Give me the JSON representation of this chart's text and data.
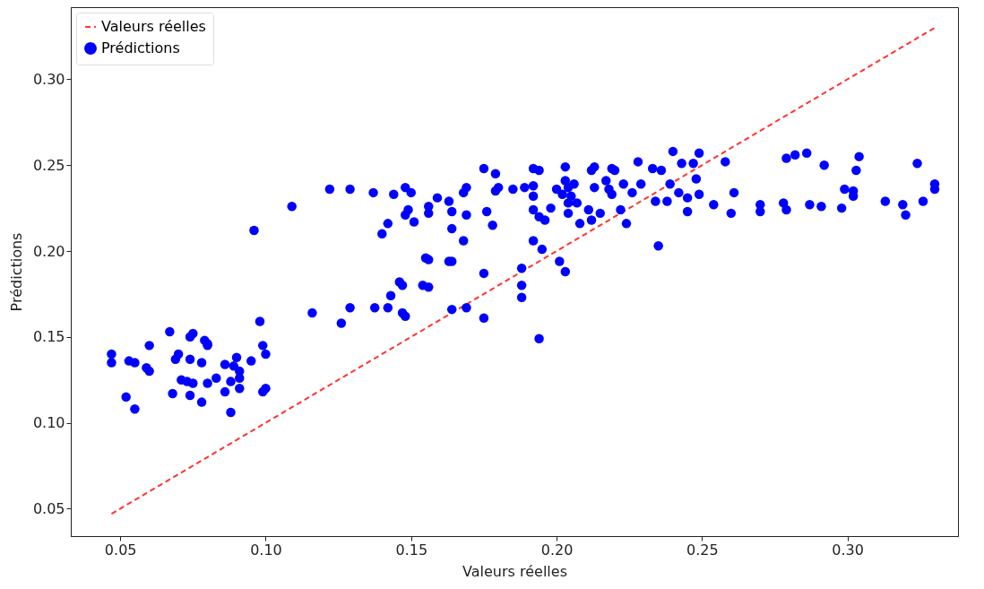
{
  "chart_data": {
    "type": "scatter",
    "xlabel": "Valeurs réelles",
    "ylabel": "Prédictions",
    "xlim": [
      0.033,
      0.338
    ],
    "ylim": [
      0.034,
      0.342
    ],
    "xticks": [
      {
        "value": 0.05,
        "label": "0.05"
      },
      {
        "value": 0.1,
        "label": "0.10"
      },
      {
        "value": 0.15,
        "label": "0.15"
      },
      {
        "value": 0.2,
        "label": "0.20"
      },
      {
        "value": 0.25,
        "label": "0.25"
      },
      {
        "value": 0.3,
        "label": "0.30"
      }
    ],
    "yticks": [
      {
        "value": 0.05,
        "label": "0.05"
      },
      {
        "value": 0.1,
        "label": "0.10"
      },
      {
        "value": 0.15,
        "label": "0.15"
      },
      {
        "value": 0.2,
        "label": "0.20"
      },
      {
        "value": 0.25,
        "label": "0.25"
      },
      {
        "value": 0.3,
        "label": "0.30"
      }
    ],
    "legend": "top left",
    "grid": false,
    "series": [
      {
        "name": "Valeurs réelles",
        "type": "line",
        "color": "#ff3333",
        "line_style": "dashed",
        "x": [
          0.047,
          0.33
        ],
        "values": [
          0.047,
          0.33
        ]
      },
      {
        "name": "Prédictions",
        "type": "scatter",
        "color": "#0000ff",
        "marker": "circle",
        "x": [
          0.047,
          0.047,
          0.053,
          0.055,
          0.052,
          0.055,
          0.059,
          0.06,
          0.06,
          0.067,
          0.069,
          0.07,
          0.068,
          0.071,
          0.073,
          0.074,
          0.075,
          0.074,
          0.074,
          0.075,
          0.078,
          0.078,
          0.079,
          0.08,
          0.08,
          0.08,
          0.083,
          0.086,
          0.086,
          0.088,
          0.088,
          0.089,
          0.09,
          0.091,
          0.091,
          0.091,
          0.095,
          0.096,
          0.098,
          0.099,
          0.1,
          0.099,
          0.1,
          0.109,
          0.116,
          0.122,
          0.126,
          0.129,
          0.129,
          0.137,
          0.1375,
          0.142,
          0.143,
          0.147,
          0.148,
          0.14,
          0.142,
          0.144,
          0.148,
          0.15,
          0.149,
          0.148,
          0.151,
          0.156,
          0.156,
          0.156,
          0.156,
          0.159,
          0.163,
          0.164,
          0.164,
          0.168,
          0.169,
          0.168,
          0.169,
          0.155,
          0.163,
          0.164,
          0.154,
          0.146,
          0.147,
          0.164,
          0.169,
          0.175,
          0.175,
          0.175,
          0.176,
          0.178,
          0.179,
          0.18,
          0.179,
          0.185,
          0.188,
          0.188,
          0.188,
          0.189,
          0.192,
          0.194,
          0.192,
          0.192,
          0.192,
          0.194,
          0.196,
          0.198,
          0.192,
          0.195,
          0.194,
          0.201,
          0.203,
          0.2,
          0.203,
          0.203,
          0.202,
          0.204,
          0.204,
          0.206,
          0.205,
          0.207,
          0.204,
          0.208,
          0.211,
          0.212,
          0.215,
          0.213,
          0.212,
          0.213,
          0.217,
          0.219,
          0.22,
          0.218,
          0.219,
          0.222,
          0.224,
          0.223,
          0.226,
          0.228,
          0.229,
          0.233,
          0.236,
          0.234,
          0.235,
          0.238,
          0.239,
          0.24,
          0.243,
          0.242,
          0.245,
          0.245,
          0.247,
          0.248,
          0.249,
          0.249,
          0.254,
          0.258,
          0.261,
          0.26,
          0.27,
          0.27,
          0.278,
          0.279,
          0.279,
          0.282,
          0.286,
          0.287,
          0.291,
          0.292,
          0.298,
          0.299,
          0.302,
          0.302,
          0.303,
          0.304,
          0.313,
          0.319,
          0.32,
          0.324,
          0.326,
          0.33,
          0.33
        ],
        "values": [
          0.14,
          0.135,
          0.136,
          0.135,
          0.115,
          0.108,
          0.132,
          0.145,
          0.13,
          0.153,
          0.137,
          0.14,
          0.117,
          0.125,
          0.124,
          0.15,
          0.152,
          0.137,
          0.116,
          0.123,
          0.135,
          0.112,
          0.148,
          0.145,
          0.146,
          0.123,
          0.126,
          0.134,
          0.118,
          0.106,
          0.124,
          0.133,
          0.138,
          0.13,
          0.12,
          0.126,
          0.136,
          0.212,
          0.159,
          0.145,
          0.14,
          0.118,
          0.12,
          0.226,
          0.164,
          0.236,
          0.158,
          0.236,
          0.167,
          0.234,
          0.167,
          0.167,
          0.174,
          0.18,
          0.162,
          0.21,
          0.216,
          0.233,
          0.237,
          0.234,
          0.224,
          0.221,
          0.217,
          0.222,
          0.195,
          0.179,
          0.226,
          0.231,
          0.229,
          0.223,
          0.213,
          0.206,
          0.237,
          0.234,
          0.221,
          0.196,
          0.194,
          0.194,
          0.18,
          0.182,
          0.164,
          0.166,
          0.167,
          0.187,
          0.161,
          0.248,
          0.223,
          0.215,
          0.245,
          0.237,
          0.235,
          0.236,
          0.19,
          0.18,
          0.173,
          0.237,
          0.248,
          0.247,
          0.238,
          0.232,
          0.224,
          0.22,
          0.218,
          0.225,
          0.206,
          0.201,
          0.149,
          0.194,
          0.188,
          0.236,
          0.249,
          0.241,
          0.233,
          0.237,
          0.228,
          0.239,
          0.232,
          0.228,
          0.222,
          0.216,
          0.224,
          0.218,
          0.222,
          0.249,
          0.247,
          0.237,
          0.241,
          0.248,
          0.247,
          0.236,
          0.233,
          0.224,
          0.216,
          0.239,
          0.234,
          0.252,
          0.239,
          0.248,
          0.247,
          0.229,
          0.203,
          0.229,
          0.239,
          0.258,
          0.251,
          0.234,
          0.231,
          0.223,
          0.251,
          0.242,
          0.257,
          0.233,
          0.227,
          0.252,
          0.234,
          0.222,
          0.227,
          0.223,
          0.228,
          0.224,
          0.254,
          0.256,
          0.257,
          0.227,
          0.226,
          0.25,
          0.225,
          0.236,
          0.232,
          0.235,
          0.247,
          0.255,
          0.229,
          0.227,
          0.221,
          0.251,
          0.229,
          0.239,
          0.236
        ]
      }
    ]
  }
}
